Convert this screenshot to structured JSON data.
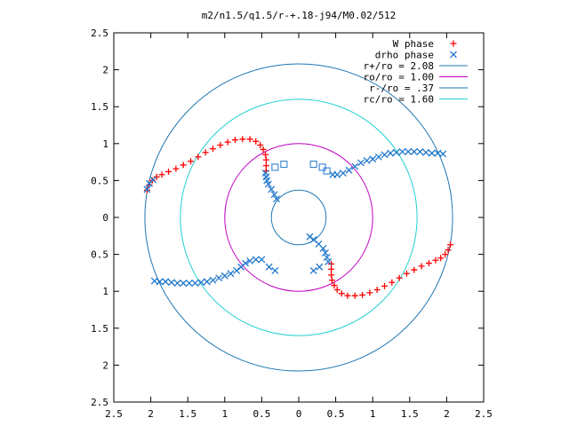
{
  "chart_data": {
    "type": "scatter",
    "title": "m2/n1.5/q1.5/r-+.18-j94/M0.02/512",
    "xlim": [
      -2.5,
      2.5
    ],
    "ylim": [
      -2.5,
      2.5
    ],
    "xticks": [
      {
        "v": -2.5,
        "label": "2.5"
      },
      {
        "v": -2,
        "label": "2"
      },
      {
        "v": -1.5,
        "label": "1.5"
      },
      {
        "v": -1,
        "label": "1"
      },
      {
        "v": -0.5,
        "label": "0.5"
      },
      {
        "v": 0,
        "label": "0"
      },
      {
        "v": 0.5,
        "label": "0.5"
      },
      {
        "v": 1,
        "label": "1"
      },
      {
        "v": 1.5,
        "label": "1.5"
      },
      {
        "v": 2,
        "label": "2"
      },
      {
        "v": 2.5,
        "label": "2.5"
      }
    ],
    "yticks": [
      {
        "v": 2.5,
        "label": "2.5"
      },
      {
        "v": 2,
        "label": "2"
      },
      {
        "v": 1.5,
        "label": "1.5"
      },
      {
        "v": 1,
        "label": "1"
      },
      {
        "v": 0.5,
        "label": "0.5"
      },
      {
        "v": 0,
        "label": "0"
      },
      {
        "v": -0.5,
        "label": "0.5"
      },
      {
        "v": -1,
        "label": "1"
      },
      {
        "v": -1.5,
        "label": "1.5"
      },
      {
        "v": -2,
        "label": "2"
      },
      {
        "v": -2.5,
        "label": "2.5"
      }
    ],
    "legend_position": "top-right",
    "circles": [
      {
        "name": "r+/ro = 2.08",
        "radius": 2.08,
        "color": "#1f77b4"
      },
      {
        "name": "ro/ro = 1.00",
        "radius": 1.0,
        "color": "#c000c0"
      },
      {
        "name": "r-/ro = .37",
        "radius": 0.37,
        "color": "#1f77b4"
      },
      {
        "name": "rc/ro = 1.60",
        "radius": 1.6,
        "color": "#20d0d0"
      }
    ],
    "series": [
      {
        "name": "W phase",
        "marker": "plus",
        "color": "#ff0000",
        "points": [
          [
            -2.05,
            0.37
          ],
          [
            -2.02,
            0.44
          ],
          [
            -1.98,
            0.5
          ],
          [
            -1.92,
            0.55
          ],
          [
            -1.85,
            0.58
          ],
          [
            -1.76,
            0.62
          ],
          [
            -1.66,
            0.66
          ],
          [
            -1.56,
            0.71
          ],
          [
            -1.46,
            0.76
          ],
          [
            -1.36,
            0.82
          ],
          [
            -1.26,
            0.88
          ],
          [
            -1.16,
            0.93
          ],
          [
            -1.06,
            0.98
          ],
          [
            -0.96,
            1.02
          ],
          [
            -0.86,
            1.05
          ],
          [
            -0.76,
            1.06
          ],
          [
            -0.66,
            1.06
          ],
          [
            -0.58,
            1.03
          ],
          [
            -0.52,
            0.98
          ],
          [
            -0.48,
            0.92
          ],
          [
            -0.45,
            0.85
          ],
          [
            -0.44,
            0.78
          ],
          [
            -0.44,
            0.7
          ],
          [
            -0.44,
            0.63
          ],
          [
            2.05,
            -0.37
          ],
          [
            2.02,
            -0.44
          ],
          [
            1.98,
            -0.5
          ],
          [
            1.92,
            -0.55
          ],
          [
            1.85,
            -0.58
          ],
          [
            1.76,
            -0.62
          ],
          [
            1.66,
            -0.66
          ],
          [
            1.56,
            -0.71
          ],
          [
            1.46,
            -0.76
          ],
          [
            1.36,
            -0.82
          ],
          [
            1.26,
            -0.88
          ],
          [
            1.16,
            -0.93
          ],
          [
            1.06,
            -0.98
          ],
          [
            0.96,
            -1.02
          ],
          [
            0.86,
            -1.05
          ],
          [
            0.76,
            -1.06
          ],
          [
            0.66,
            -1.06
          ],
          [
            0.58,
            -1.03
          ],
          [
            0.52,
            -0.98
          ],
          [
            0.48,
            -0.92
          ],
          [
            0.45,
            -0.85
          ],
          [
            0.44,
            -0.78
          ],
          [
            0.44,
            -0.7
          ],
          [
            0.44,
            -0.63
          ]
        ]
      },
      {
        "name": "drho phase",
        "marker": "cross",
        "color": "#1f77cc",
        "points": [
          [
            -2.05,
            0.38
          ],
          [
            -2.02,
            0.46
          ],
          [
            -1.97,
            0.51
          ],
          [
            -0.45,
            0.6
          ],
          [
            -0.44,
            0.55
          ],
          [
            -0.43,
            0.5
          ],
          [
            -0.41,
            0.45
          ],
          [
            -0.37,
            0.38
          ],
          [
            -0.33,
            0.31
          ],
          [
            -0.3,
            0.25
          ],
          [
            0.4,
            -0.6
          ],
          [
            0.38,
            -0.54
          ],
          [
            0.36,
            -0.48
          ],
          [
            0.33,
            -0.42
          ],
          [
            0.27,
            -0.36
          ],
          [
            0.2,
            -0.3
          ],
          [
            0.15,
            -0.26
          ],
          [
            0.46,
            0.58
          ],
          [
            0.52,
            0.58
          ],
          [
            0.6,
            0.6
          ],
          [
            0.68,
            0.64
          ],
          [
            0.76,
            0.69
          ],
          [
            0.84,
            0.74
          ],
          [
            0.92,
            0.77
          ],
          [
            1.0,
            0.79
          ],
          [
            1.08,
            0.82
          ],
          [
            1.16,
            0.85
          ],
          [
            1.24,
            0.87
          ],
          [
            1.32,
            0.88
          ],
          [
            1.4,
            0.89
          ],
          [
            1.48,
            0.89
          ],
          [
            1.56,
            0.89
          ],
          [
            1.64,
            0.89
          ],
          [
            1.72,
            0.88
          ],
          [
            1.8,
            0.87
          ],
          [
            1.88,
            0.87
          ],
          [
            1.95,
            0.86
          ],
          [
            -1.95,
            -0.86
          ],
          [
            -1.88,
            -0.87
          ],
          [
            -1.8,
            -0.87
          ],
          [
            -1.72,
            -0.88
          ],
          [
            -1.64,
            -0.89
          ],
          [
            -1.56,
            -0.89
          ],
          [
            -1.48,
            -0.89
          ],
          [
            -1.4,
            -0.89
          ],
          [
            -1.32,
            -0.88
          ],
          [
            -1.24,
            -0.87
          ],
          [
            -1.16,
            -0.85
          ],
          [
            -1.08,
            -0.82
          ],
          [
            -1.0,
            -0.79
          ],
          [
            -0.92,
            -0.76
          ],
          [
            -0.84,
            -0.72
          ],
          [
            -0.78,
            -0.67
          ],
          [
            -0.72,
            -0.62
          ],
          [
            -0.66,
            -0.59
          ],
          [
            -0.58,
            -0.57
          ],
          [
            -0.5,
            -0.57
          ],
          [
            -0.4,
            -0.67
          ],
          [
            -0.32,
            -0.72
          ],
          [
            0.2,
            -0.72
          ],
          [
            0.28,
            -0.67
          ]
        ]
      },
      {
        "name": "",
        "marker": "square",
        "color": "#1f77cc",
        "points": [
          [
            -0.32,
            0.68
          ],
          [
            -0.2,
            0.72
          ],
          [
            0.2,
            0.72
          ],
          [
            0.32,
            0.68
          ],
          [
            0.38,
            0.63
          ]
        ]
      }
    ]
  }
}
